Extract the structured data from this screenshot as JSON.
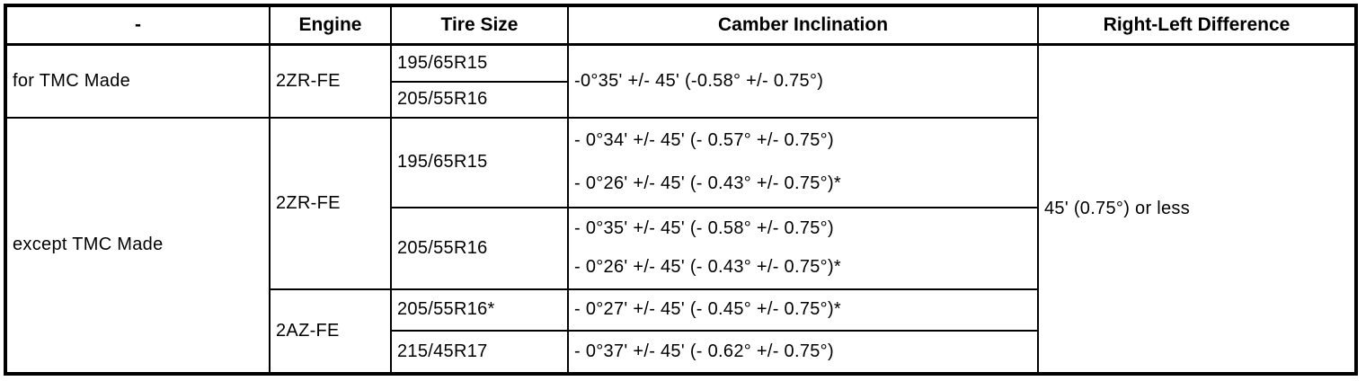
{
  "table": {
    "headers": [
      "-",
      "Engine",
      "Tire Size",
      "Camber Inclination",
      "Right-Left Difference"
    ],
    "right_left_difference": "45' (0.75°) or less",
    "sections": [
      {
        "label": "for TMC Made",
        "engine": "2ZR-FE",
        "tires": [
          "195/65R15",
          "205/55R16"
        ],
        "camber": "-0°35' +/- 45' (-0.58° +/- 0.75°)"
      },
      {
        "label": "except TMC Made",
        "engines": [
          {
            "name": "2ZR-FE",
            "tires": [
              {
                "size": "195/65R15",
                "cambers": [
                  "- 0°34' +/- 45' (- 0.57° +/- 0.75°)",
                  "- 0°26' +/- 45' (- 0.43° +/- 0.75°)*"
                ]
              },
              {
                "size": "205/55R16",
                "cambers": [
                  "- 0°35' +/- 45' (- 0.58° +/- 0.75°)",
                  "- 0°26' +/- 45' (- 0.43° +/- 0.75°)*"
                ]
              }
            ]
          },
          {
            "name": "2AZ-FE",
            "tires": [
              {
                "size": "205/55R16*",
                "cambers": [
                  "- 0°27' +/- 45' (- 0.45° +/- 0.75°)*"
                ]
              },
              {
                "size": "215/45R17",
                "cambers": [
                  "- 0°37' +/- 45' (- 0.62° +/- 0.75°)"
                ]
              }
            ]
          }
        ]
      }
    ]
  }
}
